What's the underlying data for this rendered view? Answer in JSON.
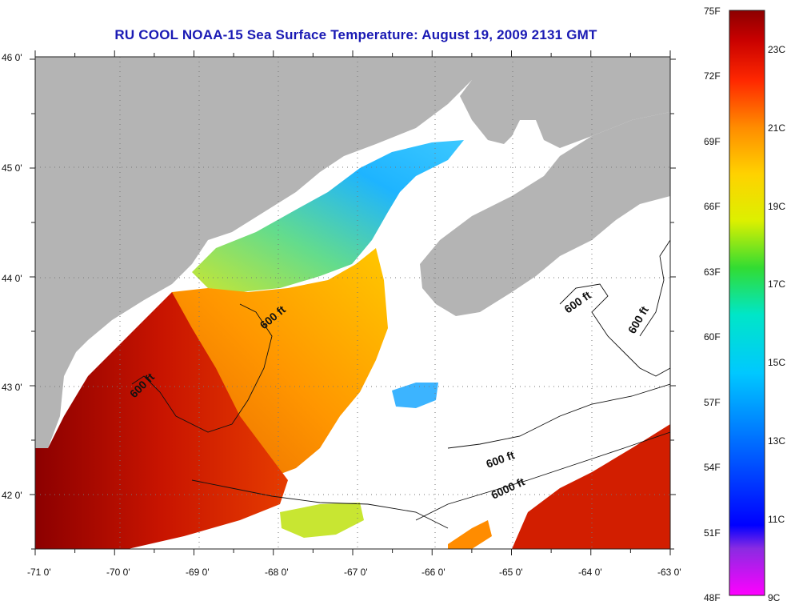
{
  "title": "RU COOL  NOAA-15  Sea Surface Temperature:  August 19, 2009 2131 GMT",
  "map": {
    "lat_labels": [
      "46 0'",
      "45 0'",
      "44 0'",
      "43 0'",
      "42 0'"
    ],
    "lon_labels": [
      "-71 0'",
      "-70 0'",
      "-69 0'",
      "-68 0'",
      "-67 0'",
      "-66 0'",
      "-65 0'",
      "-64 0'",
      "-63 0'"
    ],
    "lat_range": [
      41.5,
      46.0
    ],
    "lon_range": [
      -71.0,
      -63.0
    ],
    "grid": "dotted",
    "contours": [
      "600 ft",
      "600 ft",
      "600 ft",
      "600 ft",
      "600 ft",
      "6000 ft"
    ],
    "colors": {
      "land": "#b4b4b4",
      "no_data": "#ffffff",
      "warm": "#a00000",
      "cool": "#1eaaff"
    }
  },
  "colorbar": {
    "fahrenheit_labels": [
      "75F",
      "72F",
      "69F",
      "66F",
      "63F",
      "60F",
      "57F",
      "54F",
      "51F",
      "48F"
    ],
    "celsius_labels": [
      "23C",
      "21C",
      "19C",
      "17C",
      "15C",
      "13C",
      "11C",
      "9C"
    ],
    "range_f": [
      48,
      75
    ],
    "range_c": [
      9,
      24
    ]
  }
}
